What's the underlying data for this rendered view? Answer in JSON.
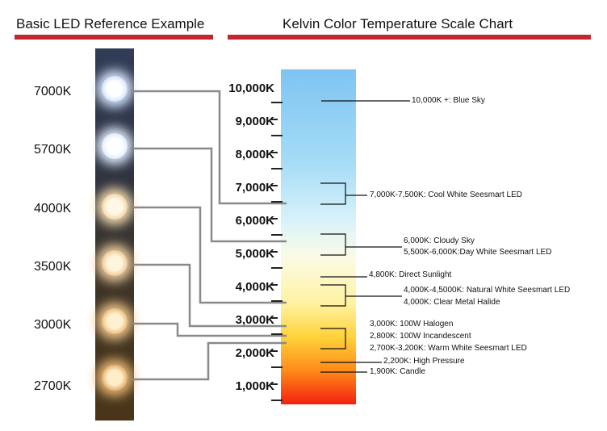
{
  "header_left": "Basic LED Reference Example",
  "header_right": "Kelvin Color Temperature Scale Chart",
  "leds": [
    {
      "label": "7000K",
      "color": "#ffffff",
      "glow": "#d8e8ff"
    },
    {
      "label": "5700K",
      "color": "#ffffff",
      "glow": "#e6f0ff"
    },
    {
      "label": "4000K",
      "color": "#fff8e8",
      "glow": "#f4dcb0"
    },
    {
      "label": "3500K",
      "color": "#fff4dc",
      "glow": "#f0cfa0"
    },
    {
      "label": "3000K",
      "color": "#fff0d0",
      "glow": "#eec58a"
    },
    {
      "label": "2700K",
      "color": "#ffecc8",
      "glow": "#e8b878"
    }
  ],
  "scale_labels": [
    "10,000K",
    "9,000K",
    "8,000K",
    "7,000K",
    "6,000K",
    "5,000K",
    "4,000K",
    "3,000K",
    "2,000K",
    "1,000K"
  ],
  "annotations": [
    "10,000K +: Blue Sky",
    "7,000K-7,500K: Cool White Seesmart LED",
    "6,000K: Cloudy Sky",
    "5,500K-6,000K:Day White Seesmart LED",
    "4,800K: Direct Sunlight",
    "4,000K-4,5000K: Natural White Seesmart LED",
    "4,000K: Clear Metal Halide",
    "3,000K: 100W Halogen",
    "2,800K: 100W Incandescent",
    "2,700K-3,200K: Warm White Seesmart LED",
    "2,200K: High Pressure",
    "1,900K: Candle"
  ],
  "colors": {
    "accent": "#c3262c",
    "connector": "#8a8a8a",
    "gradient_top": "#7ec4f4",
    "gradient_bottom": "#f42010"
  }
}
